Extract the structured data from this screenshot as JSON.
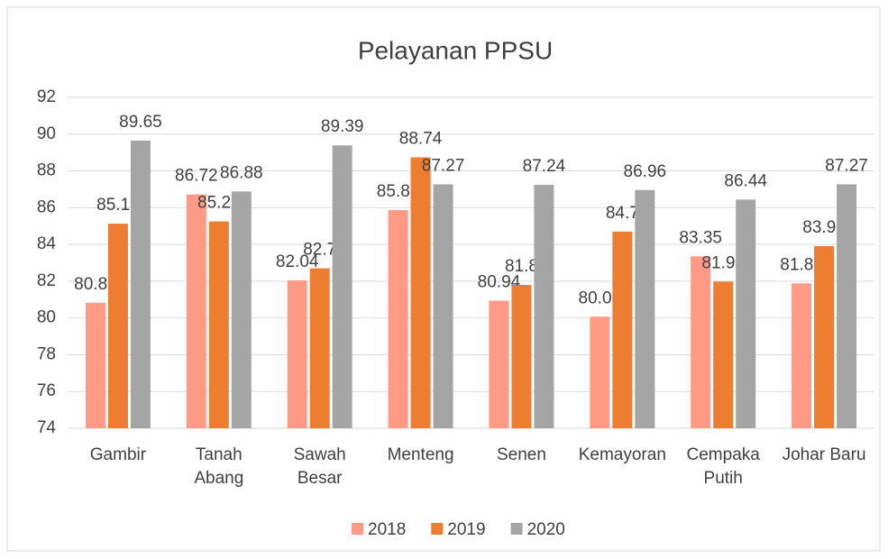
{
  "chart_data": {
    "type": "bar",
    "title": "Pelayanan PPSU",
    "categories": [
      "Gambir",
      "Tanah Abang",
      "Sawah Besar",
      "Menteng",
      "Senen",
      "Kemayoran",
      "Cempaka Putih",
      "Johar Baru"
    ],
    "series": [
      {
        "name": "2018",
        "color": "#ff9a87",
        "values": [
          80.83,
          86.72,
          82.04,
          85.87,
          80.94,
          80.07,
          83.35,
          81.88
        ]
      },
      {
        "name": "2019",
        "color": "#ed7d31",
        "values": [
          85.13,
          85.25,
          82.7,
          88.74,
          81.8,
          84.7,
          81.98,
          83.91
        ]
      },
      {
        "name": "2020",
        "color": "#a5a5a5",
        "values": [
          89.65,
          86.88,
          89.39,
          87.27,
          87.24,
          86.96,
          86.44,
          87.27
        ]
      }
    ],
    "ylim": [
      74,
      92
    ],
    "yticks": [
      74,
      76,
      78,
      80,
      82,
      84,
      86,
      88,
      90,
      92
    ],
    "grid": true,
    "legend": "bottom"
  }
}
